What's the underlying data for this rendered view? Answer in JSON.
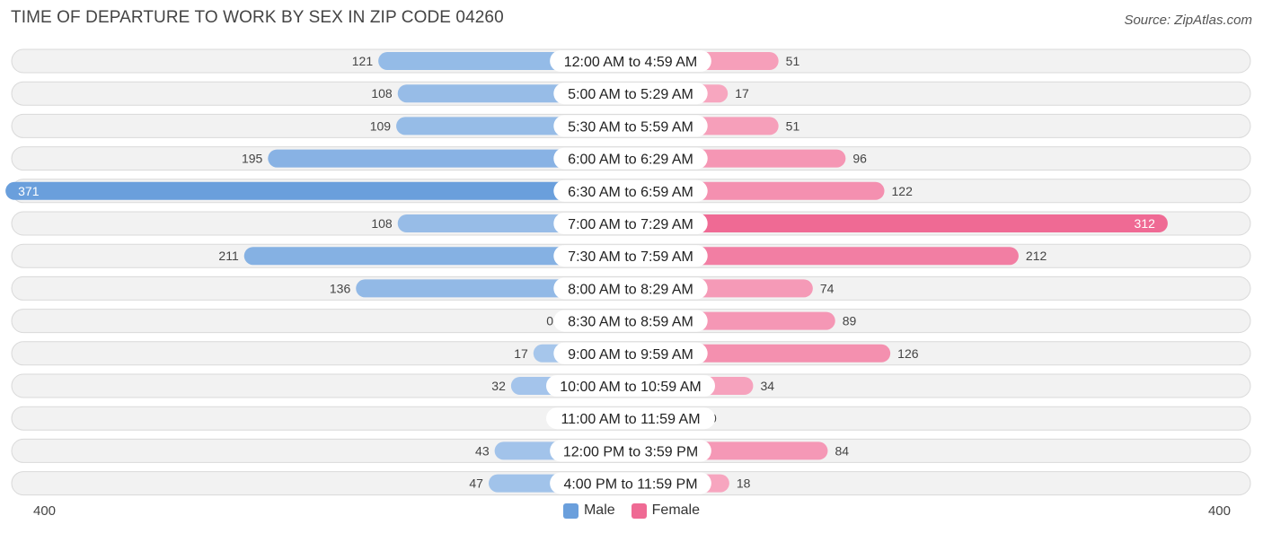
{
  "header": {
    "title": "TIME OF DEPARTURE TO WORK BY SEX IN ZIP CODE 04260",
    "source": "Source: ZipAtlas.com"
  },
  "legend": {
    "male_label": "Male",
    "female_label": "Female"
  },
  "axis": {
    "left_label": "400",
    "right_label": "400"
  },
  "colors": {
    "male_strong": "#6a9fdc",
    "male_light": "#a9c8ec",
    "female_strong": "#ef6a94",
    "female_light": "#f7a9c2",
    "row_bg": "#f2f2f2"
  },
  "chart_data": {
    "type": "bar",
    "orientation": "horizontal-diverging",
    "title": "TIME OF DEPARTURE TO WORK BY SEX IN ZIP CODE 04260",
    "categories": [
      "12:00 AM to 4:59 AM",
      "5:00 AM to 5:29 AM",
      "5:30 AM to 5:59 AM",
      "6:00 AM to 6:29 AM",
      "6:30 AM to 6:59 AM",
      "7:00 AM to 7:29 AM",
      "7:30 AM to 7:59 AM",
      "8:00 AM to 8:29 AM",
      "8:30 AM to 8:59 AM",
      "9:00 AM to 9:59 AM",
      "10:00 AM to 10:59 AM",
      "11:00 AM to 11:59 AM",
      "12:00 PM to 3:59 PM",
      "4:00 PM to 11:59 PM"
    ],
    "series": [
      {
        "name": "Male",
        "values": [
          121,
          108,
          109,
          195,
          371,
          108,
          211,
          136,
          0,
          17,
          32,
          0,
          43,
          47
        ]
      },
      {
        "name": "Female",
        "values": [
          51,
          17,
          51,
          96,
          122,
          312,
          212,
          74,
          89,
          126,
          34,
          0,
          84,
          18
        ]
      }
    ],
    "xlim": [
      -400,
      400
    ],
    "legend_position": "bottom-center",
    "grid": false
  }
}
